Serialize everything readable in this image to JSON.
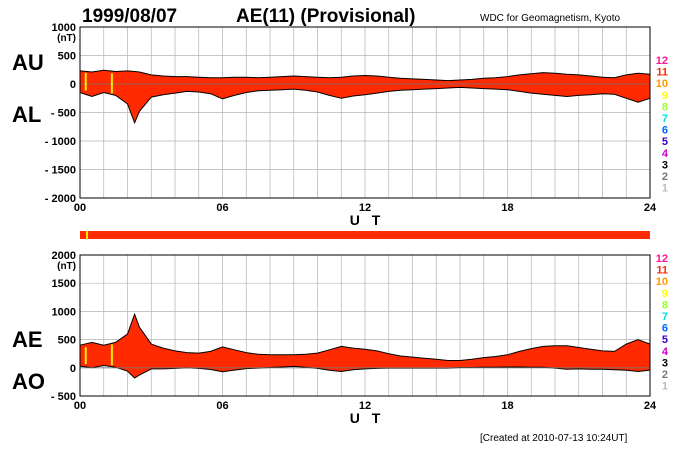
{
  "header": {
    "date": "1999/08/07",
    "title": "AE(11) (Provisional)",
    "organization": "WDC for Geomagnetism, Kyoto"
  },
  "footer": {
    "created": "[Created at 2010-07-13 10:24UT]"
  },
  "colors": {
    "fill": "#ff2a00",
    "outline": "#000000",
    "grid": "#b4b4b4",
    "highlight": "#ffee00",
    "status_bar": "#ff2a00"
  },
  "legend": {
    "items": [
      {
        "label": "12",
        "color": "#ff1493"
      },
      {
        "label": "11",
        "color": "#ff2a00"
      },
      {
        "label": "10",
        "color": "#ff9900"
      },
      {
        "label": "9",
        "color": "#ffff00"
      },
      {
        "label": "8",
        "color": "#99ff33"
      },
      {
        "label": "7",
        "color": "#00dddd"
      },
      {
        "label": "6",
        "color": "#0066ff"
      },
      {
        "label": "5",
        "color": "#3300cc"
      },
      {
        "label": "4",
        "color": "#cc00cc"
      },
      {
        "label": "3",
        "color": "#000000"
      },
      {
        "label": "2",
        "color": "#777777"
      },
      {
        "label": "1",
        "color": "#bbbbbb"
      }
    ]
  },
  "chart_data": [
    {
      "type": "area",
      "panel": "top",
      "unit": "(nT)",
      "xlabel": "U T",
      "xlim": [
        0,
        24
      ],
      "ylim": [
        -2000,
        1000
      ],
      "y_ticks": [
        "1000",
        "500",
        "0",
        "- 500",
        "- 1000",
        "- 1500",
        "- 2000"
      ],
      "x_ticks": [
        "00",
        "06",
        "12",
        "18",
        "24"
      ],
      "grid": true,
      "series_labels": {
        "upper": "AU",
        "lower": "AL"
      },
      "x": [
        0,
        0.5,
        1,
        1.5,
        2,
        2.3,
        2.5,
        3,
        3.5,
        4,
        4.5,
        5,
        5.5,
        6,
        6.5,
        7,
        7.5,
        8,
        8.5,
        9,
        9.5,
        10,
        10.5,
        11,
        11.5,
        12,
        12.5,
        13,
        13.5,
        14,
        14.5,
        15,
        15.5,
        16,
        16.5,
        17,
        17.5,
        18,
        18.5,
        19,
        19.5,
        20,
        20.5,
        21,
        21.5,
        22,
        22.5,
        23,
        23.5,
        24
      ],
      "upper": [
        230,
        210,
        240,
        220,
        230,
        220,
        210,
        160,
        140,
        130,
        130,
        120,
        110,
        110,
        120,
        120,
        110,
        120,
        130,
        140,
        130,
        120,
        110,
        120,
        140,
        150,
        140,
        120,
        100,
        90,
        80,
        70,
        60,
        70,
        80,
        100,
        110,
        130,
        160,
        180,
        200,
        190,
        170,
        160,
        140,
        120,
        110,
        160,
        190,
        170
      ],
      "lower": [
        -150,
        -220,
        -150,
        -200,
        -350,
        -680,
        -480,
        -230,
        -190,
        -160,
        -130,
        -140,
        -170,
        -260,
        -200,
        -150,
        -120,
        -110,
        -100,
        -90,
        -110,
        -140,
        -200,
        -250,
        -210,
        -190,
        -160,
        -130,
        -110,
        -100,
        -90,
        -80,
        -70,
        -60,
        -70,
        -80,
        -90,
        -100,
        -130,
        -160,
        -180,
        -200,
        -220,
        -200,
        -190,
        -170,
        -180,
        -250,
        -320,
        -250
      ]
    },
    {
      "type": "area",
      "panel": "bottom",
      "unit": "(nT)",
      "xlabel": "U T",
      "xlim": [
        0,
        24
      ],
      "ylim": [
        -500,
        2000
      ],
      "y_ticks": [
        "2000",
        "1500",
        "1000",
        "500",
        "0",
        "- 500"
      ],
      "x_ticks": [
        "00",
        "06",
        "12",
        "18",
        "24"
      ],
      "grid": true,
      "series_labels": {
        "upper": "AE",
        "lower": "AO"
      },
      "x": [
        0,
        0.5,
        1,
        1.5,
        2,
        2.3,
        2.5,
        3,
        3.5,
        4,
        4.5,
        5,
        5.5,
        6,
        6.5,
        7,
        7.5,
        8,
        8.5,
        9,
        9.5,
        10,
        10.5,
        11,
        11.5,
        12,
        12.5,
        13,
        13.5,
        14,
        14.5,
        15,
        15.5,
        16,
        16.5,
        17,
        17.5,
        18,
        18.5,
        19,
        19.5,
        20,
        20.5,
        21,
        21.5,
        22,
        22.5,
        23,
        23.5,
        24
      ],
      "upper": [
        400,
        450,
        400,
        450,
        600,
        950,
        720,
        420,
        350,
        300,
        270,
        260,
        290,
        370,
        320,
        270,
        240,
        230,
        230,
        230,
        240,
        260,
        320,
        380,
        350,
        330,
        300,
        250,
        210,
        190,
        170,
        150,
        130,
        130,
        150,
        180,
        200,
        230,
        290,
        340,
        380,
        390,
        390,
        360,
        330,
        300,
        290,
        420,
        500,
        420
      ],
      "lower": [
        30,
        0,
        40,
        10,
        -60,
        -180,
        -130,
        -20,
        -20,
        -10,
        0,
        -10,
        -30,
        -70,
        -40,
        -15,
        -5,
        5,
        15,
        25,
        10,
        -10,
        -45,
        -65,
        -35,
        -20,
        -10,
        -5,
        -5,
        -5,
        -5,
        -5,
        -5,
        5,
        5,
        10,
        10,
        15,
        15,
        10,
        10,
        -5,
        -25,
        -20,
        -25,
        -25,
        -35,
        -45,
        -65,
        -40
      ]
    }
  ]
}
